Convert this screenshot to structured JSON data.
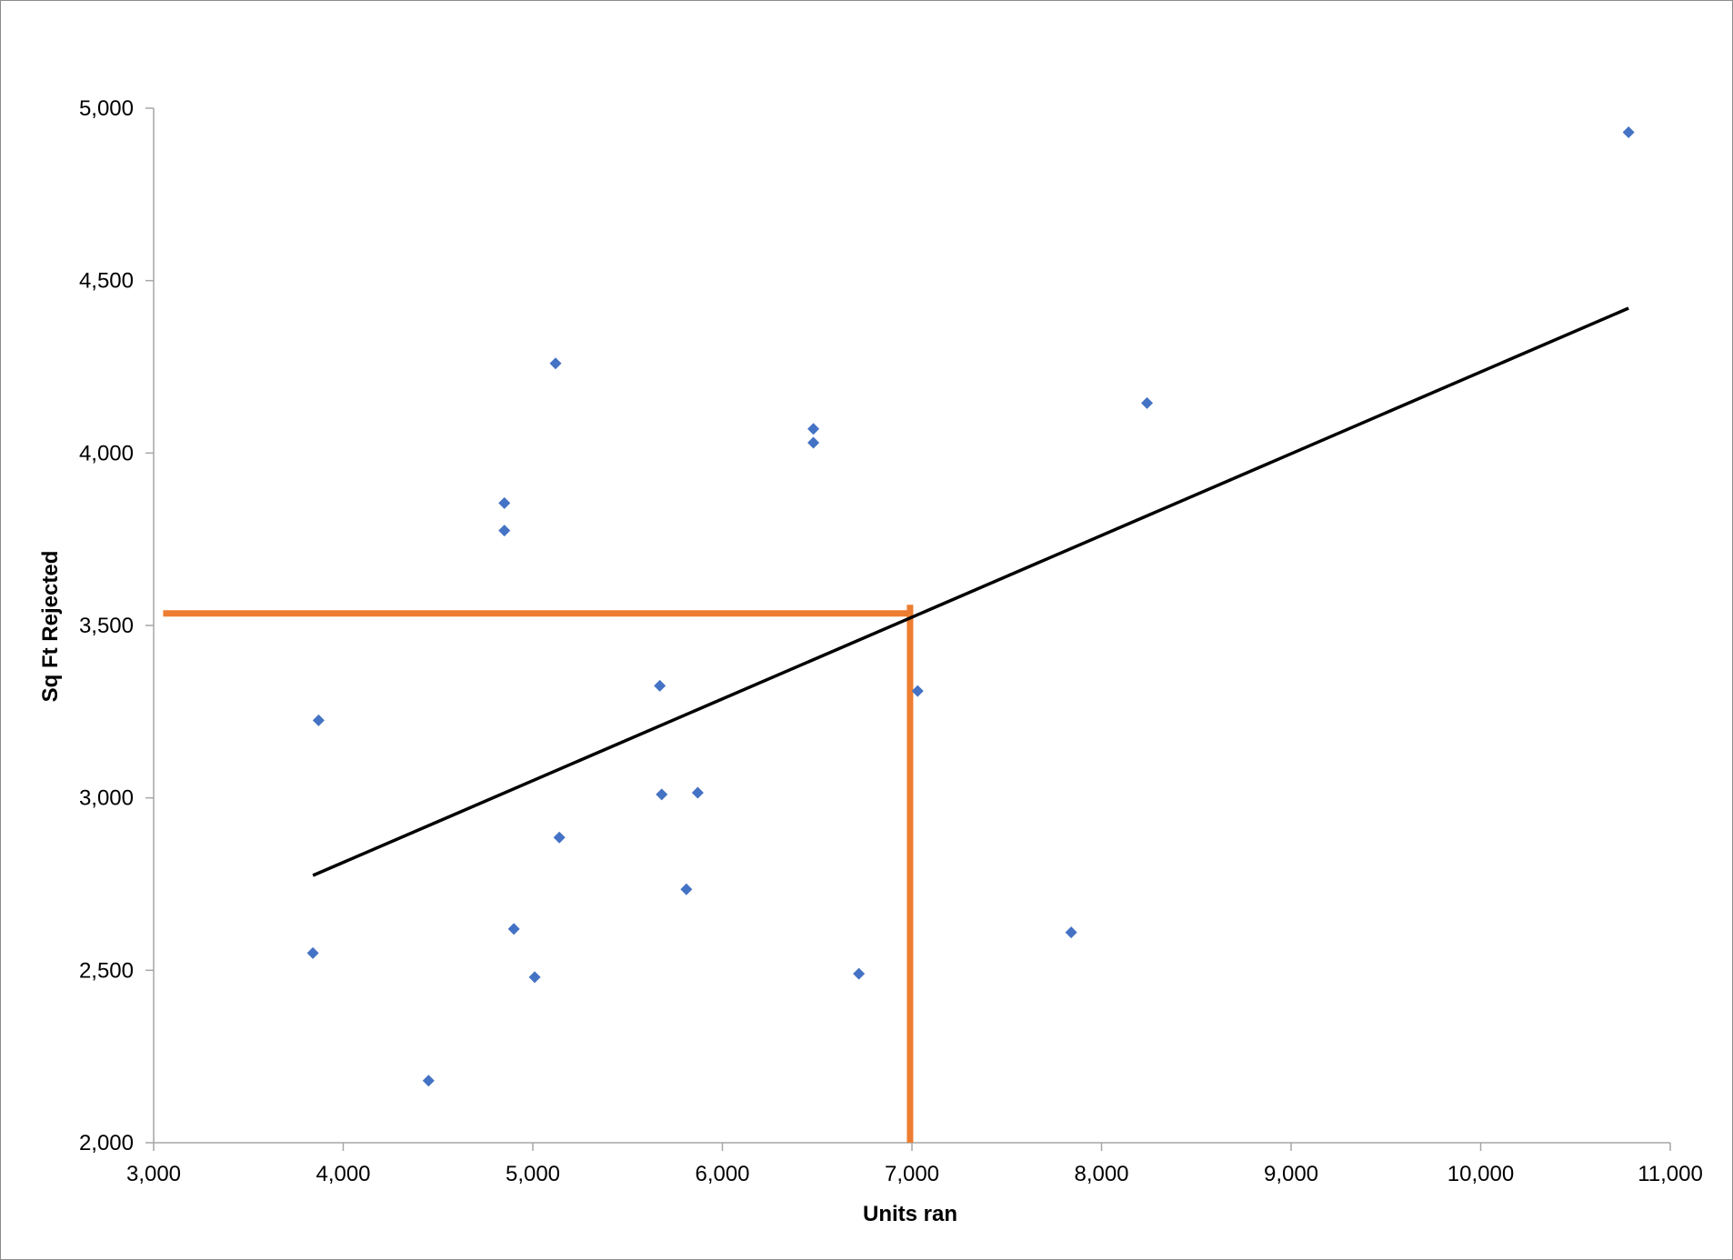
{
  "chart_data": {
    "type": "scatter",
    "title": "",
    "xlabel": "Units ran",
    "ylabel": "Sq Ft Rejected",
    "xlim": [
      3000,
      11000
    ],
    "ylim": [
      2000,
      5000
    ],
    "x_ticks": [
      3000,
      4000,
      5000,
      6000,
      7000,
      8000,
      9000,
      10000,
      11000
    ],
    "y_ticks": [
      2000,
      2500,
      3000,
      3500,
      4000,
      4500,
      5000
    ],
    "x_tick_labels": [
      "3,000",
      "4,000",
      "5,000",
      "6,000",
      "7,000",
      "8,000",
      "9,000",
      "10,000",
      "11,000"
    ],
    "y_tick_labels": [
      "2,000",
      "2,500",
      "3,000",
      "3,500",
      "4,000",
      "4,500",
      "5,000"
    ],
    "grid": false,
    "legend": "none",
    "series": [
      {
        "marker": "diamond",
        "color": "#4472c4",
        "points": [
          {
            "x": 3840,
            "y": 2550
          },
          {
            "x": 3870,
            "y": 3225
          },
          {
            "x": 4450,
            "y": 2180
          },
          {
            "x": 4850,
            "y": 3855
          },
          {
            "x": 4850,
            "y": 3775
          },
          {
            "x": 4900,
            "y": 2620
          },
          {
            "x": 5010,
            "y": 2480
          },
          {
            "x": 5120,
            "y": 4260
          },
          {
            "x": 5140,
            "y": 2885
          },
          {
            "x": 5670,
            "y": 3325
          },
          {
            "x": 5680,
            "y": 3010
          },
          {
            "x": 5810,
            "y": 2735
          },
          {
            "x": 5870,
            "y": 3015
          },
          {
            "x": 6480,
            "y": 4070
          },
          {
            "x": 6480,
            "y": 4030
          },
          {
            "x": 6720,
            "y": 2490
          },
          {
            "x": 7030,
            "y": 3310
          },
          {
            "x": 7840,
            "y": 2610
          },
          {
            "x": 8240,
            "y": 4145
          },
          {
            "x": 10780,
            "y": 4930
          }
        ]
      }
    ],
    "trendline": {
      "color": "#000000",
      "from": {
        "x": 3840,
        "y": 2775
      },
      "to": {
        "x": 10780,
        "y": 4420
      }
    },
    "reference_lines": {
      "color": "#ed7d31",
      "horizontal": {
        "y": 3535,
        "x_from": 3050,
        "x_to": 7000
      },
      "vertical": {
        "x": 6990,
        "y_from": 2000,
        "y_to": 3560
      }
    }
  }
}
